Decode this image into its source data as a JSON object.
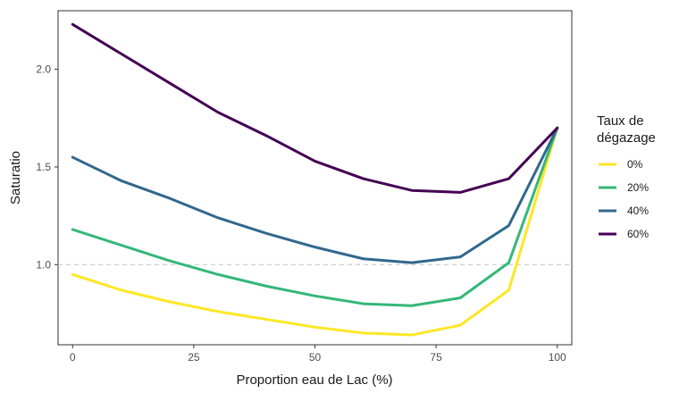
{
  "chart_data": {
    "type": "line",
    "title": "",
    "xlabel": "Proportion eau de Lac (%)",
    "ylabel": "Saturatio",
    "xlim": [
      -3,
      103
    ],
    "ylim": [
      0.59,
      2.3
    ],
    "x": [
      0,
      10,
      20,
      30,
      40,
      50,
      60,
      70,
      80,
      90,
      100
    ],
    "xticks": [
      "0",
      "25",
      "50",
      "75",
      "100"
    ],
    "yticks": [
      "1.0",
      "1.5",
      "2.0"
    ],
    "reference_line": {
      "y": 1.0,
      "style": "dashed",
      "color": "#cccccc"
    },
    "grid": false,
    "legend": {
      "title_line1": "Taux de",
      "title_line2": "dégazage",
      "position": "right"
    },
    "series": [
      {
        "name": "0%",
        "color": "#fde725",
        "values": [
          0.95,
          0.87,
          0.81,
          0.76,
          0.72,
          0.68,
          0.65,
          0.64,
          0.69,
          0.87,
          1.7
        ]
      },
      {
        "name": "20%",
        "color": "#35b779",
        "values": [
          1.18,
          1.1,
          1.02,
          0.95,
          0.89,
          0.84,
          0.8,
          0.79,
          0.83,
          1.01,
          1.7
        ]
      },
      {
        "name": "40%",
        "color": "#31688e",
        "values": [
          1.55,
          1.43,
          1.34,
          1.24,
          1.16,
          1.09,
          1.03,
          1.01,
          1.04,
          1.2,
          1.7
        ]
      },
      {
        "name": "60%",
        "color": "#440154",
        "values": [
          2.23,
          2.08,
          1.93,
          1.78,
          1.66,
          1.53,
          1.44,
          1.38,
          1.37,
          1.44,
          1.7
        ]
      }
    ]
  }
}
